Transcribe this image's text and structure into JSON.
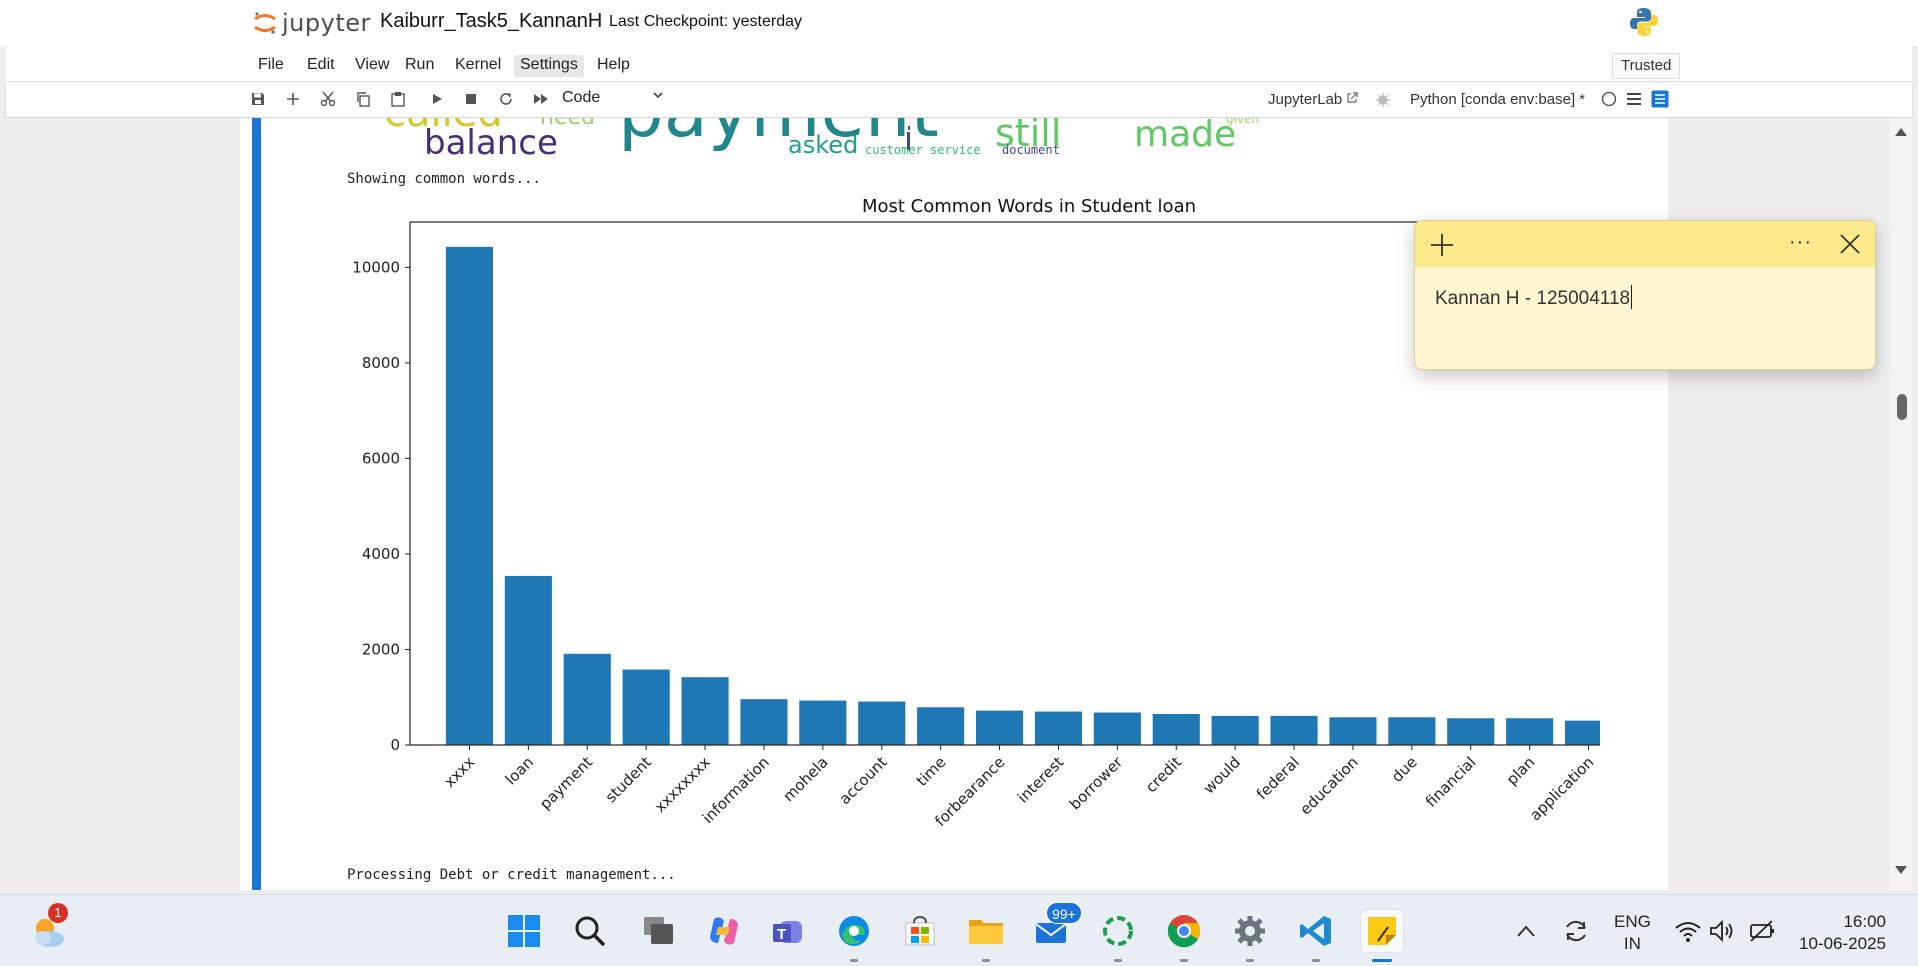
{
  "header": {
    "logo_text": "jupyter",
    "notebook_title": "Kaiburr_Task5_KannanH",
    "checkpoint": "Last Checkpoint: yesterday"
  },
  "menu": [
    "File",
    "Edit",
    "View",
    "Run",
    "Kernel",
    "Settings",
    "Help"
  ],
  "trusted_label": "Trusted",
  "toolbar": {
    "cell_type": "Code",
    "jupyterlab_link": "JupyterLab",
    "kernel": "Python [conda env:base] *"
  },
  "wordcloud_words": [
    {
      "text": "called",
      "color": "#d8c72a"
    },
    {
      "text": "need",
      "color": "#9ad266"
    },
    {
      "text": "payment",
      "color": "#22878c"
    },
    {
      "text": "still",
      "color": "#5ec962"
    },
    {
      "text": "made",
      "color": "#5ec962"
    },
    {
      "text": "given",
      "color": "#9fd55a"
    },
    {
      "text": "balance",
      "color": "#462f7a"
    },
    {
      "text": "asked",
      "color": "#1f9e89"
    },
    {
      "text": "customer service",
      "color": "#35b779"
    },
    {
      "text": "document",
      "color": "#3e4a89"
    }
  ],
  "output_texts": {
    "showing": "Showing common words...",
    "processing": "Processing Debt or credit management..."
  },
  "chart_data": {
    "type": "bar",
    "title": "Most Common Words in Student loan",
    "xlabel": "",
    "ylabel": "",
    "categories": [
      "xxxx",
      "loan",
      "payment",
      "student",
      "xxxxxxxx",
      "information",
      "mohela",
      "account",
      "time",
      "forbearance",
      "interest",
      "borrower",
      "credit",
      "would",
      "federal",
      "education",
      "due",
      "financial",
      "plan",
      "application"
    ],
    "values": [
      10430,
      3540,
      1910,
      1580,
      1420,
      960,
      930,
      910,
      790,
      720,
      700,
      680,
      650,
      610,
      610,
      580,
      580,
      560,
      560,
      510
    ],
    "yticks": [
      0,
      2000,
      4000,
      6000,
      8000,
      10000
    ],
    "ylim": [
      0,
      10950
    ],
    "bar_color": "#1f77b4",
    "grid": false,
    "legend": "none"
  },
  "sticky_note": {
    "text": "Kannan H - 125004118",
    "more_label": "···"
  },
  "taskbar": {
    "weather_badge": "1",
    "mail_badge": "99+",
    "apps": [
      "start-icon",
      "search-icon",
      "task-view-icon",
      "copilot-icon",
      "teams-icon",
      "edge-icon",
      "store-icon",
      "file-explorer-icon",
      "mail-icon",
      "app-green-circle-icon",
      "chrome-icon",
      "settings-icon",
      "vscode-icon",
      "sticky-notes-icon"
    ]
  },
  "tray": {
    "lang_top": "ENG",
    "lang_bottom": "IN",
    "time": "16:00",
    "date": "10-06-2025"
  },
  "colors": {
    "accent": "#1976d2",
    "sticky_header": "#fbe98c",
    "sticky_body": "#fff7d1"
  }
}
